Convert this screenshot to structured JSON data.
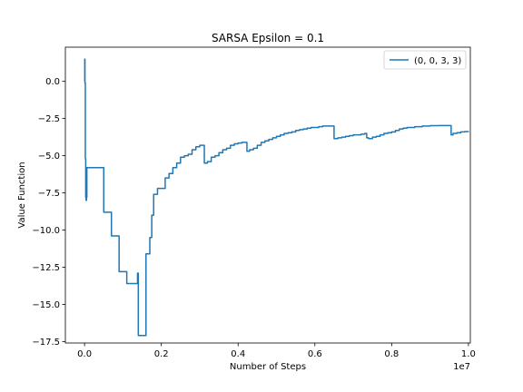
{
  "chart_data": {
    "type": "line",
    "title": "SARSA Epsilon = 0.1",
    "xlabel": "Number of Steps",
    "ylabel": "Value Function",
    "x_offset_label": "1e7",
    "xlim": [
      -0.05,
      1.005
    ],
    "ylim": [
      -17.6,
      2.3
    ],
    "x_scale_factor": 10000000,
    "xticks": [
      0.0,
      0.2,
      0.4,
      0.6,
      0.8,
      1.0
    ],
    "xtick_labels": [
      "0.0",
      "0.2",
      "0.4",
      "0.6",
      "0.8",
      "1.0"
    ],
    "yticks": [
      0.0,
      -2.5,
      -5.0,
      -7.5,
      -10.0,
      -12.5,
      -15.0,
      -17.5
    ],
    "ytick_labels": [
      "0.0",
      "−2.5",
      "−5.0",
      "−7.5",
      "−10.0",
      "−12.5",
      "−15.0",
      "−17.5"
    ],
    "grid": false,
    "legend_position": "top-right",
    "series": [
      {
        "name": "(0, 0, 3, 3)",
        "color": "#1f77b4",
        "x": [
          0.0,
          0.0005,
          0.001,
          0.002,
          0.003,
          0.004,
          0.005,
          0.006,
          0.007,
          0.008,
          0.01,
          0.015,
          0.02,
          0.03,
          0.04,
          0.05,
          0.06,
          0.07,
          0.08,
          0.09,
          0.1,
          0.11,
          0.12,
          0.125,
          0.13,
          0.135,
          0.138,
          0.14,
          0.145,
          0.16,
          0.165,
          0.17,
          0.175,
          0.18,
          0.185,
          0.19,
          0.2,
          0.21,
          0.22,
          0.23,
          0.24,
          0.25,
          0.26,
          0.27,
          0.28,
          0.29,
          0.3,
          0.31,
          0.312,
          0.32,
          0.33,
          0.34,
          0.35,
          0.36,
          0.37,
          0.38,
          0.39,
          0.4,
          0.41,
          0.42,
          0.423,
          0.43,
          0.44,
          0.45,
          0.46,
          0.47,
          0.48,
          0.49,
          0.5,
          0.51,
          0.52,
          0.53,
          0.54,
          0.55,
          0.56,
          0.57,
          0.58,
          0.59,
          0.6,
          0.61,
          0.62,
          0.63,
          0.64,
          0.645,
          0.65,
          0.66,
          0.67,
          0.68,
          0.69,
          0.7,
          0.71,
          0.72,
          0.73,
          0.735,
          0.74,
          0.75,
          0.76,
          0.77,
          0.78,
          0.79,
          0.8,
          0.81,
          0.82,
          0.83,
          0.84,
          0.85,
          0.86,
          0.87,
          0.88,
          0.89,
          0.9,
          0.91,
          0.92,
          0.93,
          0.94,
          0.95,
          0.955,
          0.96,
          0.97,
          0.98,
          0.99,
          1.0
        ],
        "y": [
          0.0,
          1.5,
          -0.1,
          -5.2,
          -7.8,
          -8.0,
          -7.8,
          -5.8,
          -5.8,
          -5.8,
          -5.8,
          -5.8,
          -5.8,
          -5.8,
          -5.8,
          -8.8,
          -8.8,
          -10.4,
          -10.4,
          -12.8,
          -12.8,
          -13.6,
          -13.6,
          -13.6,
          -13.6,
          -13.6,
          -12.9,
          -17.1,
          -17.1,
          -11.6,
          -11.6,
          -10.5,
          -9.0,
          -7.6,
          -7.6,
          -7.2,
          -7.2,
          -6.5,
          -6.2,
          -5.8,
          -5.5,
          -5.1,
          -5.0,
          -4.9,
          -4.6,
          -4.4,
          -4.3,
          -4.3,
          -5.5,
          -5.4,
          -5.1,
          -5.0,
          -4.8,
          -4.6,
          -4.5,
          -4.3,
          -4.2,
          -4.15,
          -4.1,
          -4.1,
          -4.7,
          -4.6,
          -4.5,
          -4.3,
          -4.1,
          -4.0,
          -3.9,
          -3.8,
          -3.7,
          -3.6,
          -3.5,
          -3.45,
          -3.4,
          -3.3,
          -3.25,
          -3.2,
          -3.15,
          -3.1,
          -3.1,
          -3.05,
          -3.0,
          -3.0,
          -3.0,
          -3.0,
          -3.85,
          -3.8,
          -3.75,
          -3.7,
          -3.65,
          -3.6,
          -3.6,
          -3.55,
          -3.5,
          -3.8,
          -3.85,
          -3.75,
          -3.7,
          -3.6,
          -3.5,
          -3.45,
          -3.4,
          -3.3,
          -3.2,
          -3.15,
          -3.1,
          -3.1,
          -3.05,
          -3.05,
          -3.0,
          -3.0,
          -2.98,
          -2.98,
          -2.97,
          -2.97,
          -2.97,
          -2.97,
          -3.6,
          -3.5,
          -3.45,
          -3.4,
          -3.38,
          -3.35
        ]
      }
    ]
  }
}
